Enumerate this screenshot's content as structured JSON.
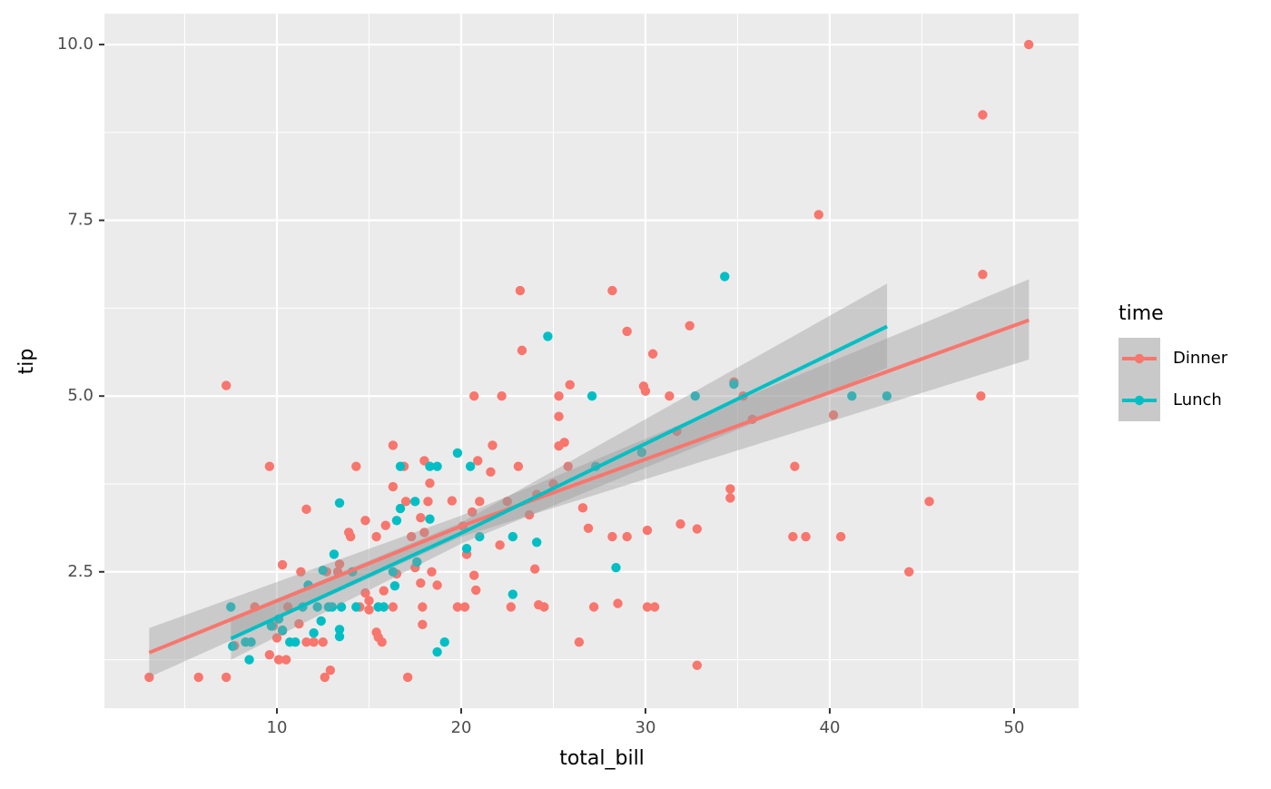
{
  "chart_data": {
    "type": "scatter",
    "x_label": "total_bill",
    "y_label": "tip",
    "legend_title": "time",
    "legend_position": "right",
    "grid": true,
    "xlim": [
      0.64,
      53.5
    ],
    "ylim": [
      0.56,
      10.44
    ],
    "xticks": [
      10,
      20,
      30,
      40,
      50
    ],
    "yticks": [
      {
        "value": 10,
        "label": "10.0"
      },
      7.5,
      {
        "value": 5,
        "label": "5.0"
      },
      2.5
    ],
    "series": [
      {
        "name": "Dinner",
        "color": "#F8766D",
        "x": [
          3.07,
          5.75,
          7.25,
          7.25,
          7.7,
          8.8,
          9.6,
          9.6,
          9.8,
          10.0,
          10.1,
          10.3,
          10.3,
          10.5,
          10.6,
          11.2,
          11.3,
          11.6,
          11.6,
          12.0,
          12.5,
          12.6,
          12.7,
          12.9,
          13.3,
          13.4,
          13.9,
          14.0,
          14.3,
          14.5,
          14.8,
          14.8,
          15.0,
          15.0,
          15.4,
          15.4,
          15.5,
          15.7,
          15.8,
          15.9,
          16.3,
          16.3,
          16.3,
          16.5,
          16.9,
          17.0,
          17.1,
          17.3,
          17.5,
          17.8,
          17.8,
          17.9,
          17.9,
          18.0,
          18.0,
          18.2,
          18.3,
          18.4,
          18.7,
          19.5,
          19.8,
          20.1,
          20.2,
          20.3,
          20.6,
          20.7,
          20.7,
          20.8,
          20.9,
          21.0,
          21.6,
          21.7,
          22.1,
          22.2,
          22.5,
          22.7,
          23.1,
          23.2,
          23.3,
          23.7,
          24.0,
          24.1,
          24.2,
          24.5,
          25.0,
          25.3,
          25.3,
          25.3,
          25.6,
          25.9,
          25.8,
          26.4,
          26.6,
          26.9,
          27.2,
          28.2,
          28.2,
          28.5,
          29.0,
          29.0,
          29.9,
          30.0,
          30.1,
          30.1,
          30.4,
          30.5,
          31.3,
          31.7,
          31.9,
          32.4,
          32.8,
          32.8,
          34.6,
          34.6,
          34.8,
          35.3,
          35.8,
          38.0,
          38.1,
          38.7,
          39.4,
          40.2,
          40.6,
          44.3,
          45.4,
          48.2,
          48.3,
          48.3,
          50.8
        ],
        "values": [
          1.0,
          1.0,
          5.15,
          1.0,
          1.45,
          2.0,
          4.0,
          1.32,
          1.73,
          1.56,
          1.25,
          2.6,
          1.66,
          1.25,
          2.0,
          1.76,
          2.5,
          3.39,
          1.5,
          1.5,
          1.5,
          1.0,
          2.5,
          1.1,
          2.5,
          2.61,
          3.06,
          3.0,
          4.0,
          2.0,
          3.23,
          2.2,
          2.09,
          1.96,
          3.0,
          1.64,
          1.57,
          1.5,
          2.23,
          3.16,
          4.3,
          3.71,
          2.0,
          2.47,
          4.0,
          3.5,
          1.0,
          3.0,
          2.56,
          3.27,
          2.34,
          1.75,
          2.0,
          4.08,
          3.06,
          3.5,
          3.76,
          2.5,
          2.31,
          3.51,
          2.0,
          3.15,
          2.0,
          2.75,
          3.35,
          5.0,
          2.45,
          2.24,
          4.08,
          3.5,
          3.92,
          4.3,
          2.88,
          5.0,
          3.5,
          2.0,
          4.0,
          6.5,
          5.65,
          3.31,
          2.54,
          3.6,
          2.03,
          2.0,
          3.75,
          4.29,
          4.71,
          5.0,
          4.34,
          5.16,
          4.0,
          1.5,
          3.41,
          3.12,
          2.0,
          6.5,
          3.0,
          2.05,
          3.0,
          5.92,
          5.14,
          5.07,
          2.0,
          3.09,
          5.6,
          2.0,
          5.0,
          4.5,
          3.18,
          6.0,
          3.11,
          1.17,
          3.55,
          3.68,
          5.2,
          5.0,
          4.67,
          3.0,
          4.0,
          3.0,
          7.58,
          4.73,
          3.0,
          2.5,
          3.5,
          5.0,
          6.73,
          9.0,
          10.0
        ],
        "fit_x": [
          3.07,
          20,
          50.81
        ],
        "fit": [
          1.35,
          3.15,
          6.08
        ],
        "fit_lower": [
          1.0,
          3.0,
          5.52
        ],
        "fit_upper": [
          1.7,
          3.3,
          6.66
        ]
      },
      {
        "name": "Lunch",
        "color": "#00BFC4",
        "x": [
          7.5,
          7.6,
          8.3,
          8.5,
          8.6,
          9.7,
          10.1,
          10.3,
          10.7,
          11.0,
          11.4,
          11.7,
          12.0,
          12.2,
          12.4,
          12.5,
          12.8,
          13.0,
          13.1,
          13.4,
          13.4,
          13.4,
          13.5,
          14.1,
          14.3,
          15.5,
          15.8,
          16.3,
          16.4,
          16.5,
          16.7,
          16.7,
          17.5,
          17.6,
          18.3,
          18.3,
          18.7,
          18.7,
          19.1,
          19.8,
          20.3,
          20.5,
          21.0,
          22.8,
          22.8,
          24.1,
          24.7,
          27.1,
          27.3,
          28.4,
          29.8,
          32.7,
          34.3,
          34.8,
          41.2,
          43.1
        ],
        "values": [
          2.0,
          1.44,
          1.5,
          1.25,
          1.5,
          1.73,
          1.83,
          1.67,
          1.5,
          1.5,
          2.0,
          2.31,
          1.63,
          2.0,
          1.8,
          2.52,
          2.0,
          2.0,
          2.75,
          3.48,
          1.68,
          1.58,
          2.0,
          2.5,
          2.0,
          2.0,
          2.0,
          2.5,
          2.3,
          3.23,
          3.4,
          4.0,
          3.5,
          2.64,
          4.0,
          3.25,
          4.0,
          1.36,
          1.5,
          4.19,
          2.83,
          4.0,
          3.0,
          3.0,
          2.18,
          2.92,
          5.85,
          5.0,
          4.0,
          2.56,
          4.2,
          5.0,
          6.7,
          5.17,
          5.0,
          5.0
        ],
        "fit_x": [
          7.51,
          20,
          43.11
        ],
        "fit": [
          1.55,
          3.05,
          5.99
        ],
        "fit_lower": [
          1.25,
          2.9,
          5.4
        ],
        "fit_upper": [
          1.85,
          3.2,
          6.6
        ]
      }
    ]
  }
}
